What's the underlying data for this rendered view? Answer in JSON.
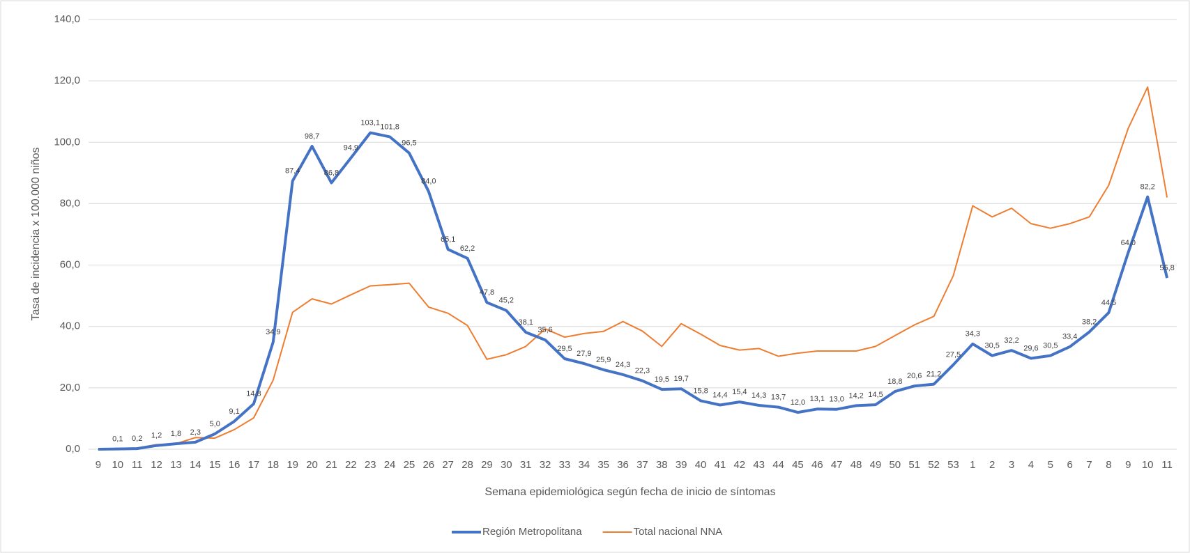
{
  "chart_data": {
    "type": "line",
    "x_label": "Semana epidemiológica según fecha de inicio de síntomas",
    "y_label": "Tasa de incidencia x 100.000 niños",
    "categories": [
      9,
      10,
      11,
      12,
      13,
      14,
      15,
      16,
      17,
      18,
      19,
      20,
      21,
      22,
      23,
      24,
      25,
      26,
      27,
      28,
      29,
      30,
      31,
      32,
      33,
      34,
      35,
      36,
      37,
      38,
      39,
      40,
      41,
      42,
      43,
      44,
      45,
      46,
      47,
      48,
      49,
      50,
      51,
      52,
      53,
      1,
      2,
      3,
      4,
      5,
      6,
      7,
      8,
      9,
      10,
      11
    ],
    "ylim": [
      0,
      140
    ],
    "yticks": [
      {
        "value": 0,
        "label": "0,0"
      },
      {
        "value": 20,
        "label": "20,0"
      },
      {
        "value": 40,
        "label": "40,0"
      },
      {
        "value": 60,
        "label": "60,0"
      },
      {
        "value": 80,
        "label": "80,0"
      },
      {
        "value": 100,
        "label": "100,0"
      },
      {
        "value": 120,
        "label": "120,0"
      },
      {
        "value": 140,
        "label": "140,0"
      }
    ],
    "grid": true,
    "legend": "bottom",
    "series": [
      {
        "name": "Región Metropolitana",
        "color": "#4472c4",
        "width": 4,
        "values": [
          0,
          0.1,
          0.2,
          1.2,
          1.8,
          2.3,
          5.0,
          9.1,
          14.8,
          34.9,
          87.4,
          98.7,
          86.8,
          94.9,
          103.1,
          101.8,
          96.5,
          84.0,
          65.1,
          62.2,
          47.8,
          45.2,
          38.1,
          35.6,
          29.5,
          27.9,
          25.9,
          24.3,
          22.3,
          19.5,
          19.7,
          15.8,
          14.4,
          15.4,
          14.3,
          13.7,
          12.0,
          13.1,
          13.0,
          14.2,
          14.5,
          18.8,
          20.6,
          21.2,
          27.5,
          34.3,
          30.5,
          32.2,
          29.6,
          30.5,
          33.4,
          38.2,
          44.5,
          64.0,
          82.2,
          55.8
        ],
        "value_labels": [
          null,
          "0,1",
          "0,2",
          "1,2",
          "1,8",
          "2,3",
          "5,0",
          "9,1",
          "14,8",
          "34,9",
          "87,4",
          "98,7",
          "86,8",
          "94,9",
          "103,1",
          "101,8",
          "96,5",
          "84,0",
          "65,1",
          "62,2",
          "47,8",
          "45,2",
          "38,1",
          "35,6",
          "29,5",
          "27,9",
          "25,9",
          "24,3",
          "22,3",
          "19,5",
          "19,7",
          "15,8",
          "14,4",
          "15,4",
          "14,3",
          "13,7",
          "12,0",
          "13,1",
          "13,0",
          "14,2",
          "14,5",
          "18,8",
          "20,6",
          "21,2",
          "27,5",
          "34,3",
          "30,5",
          "32,2",
          "29,6",
          "30,5",
          "33,4",
          "38,2",
          "44,5",
          "64,0",
          "82,2",
          "55,8"
        ]
      },
      {
        "name": "Total nacional NNA",
        "color": "#ed7d31",
        "width": 2,
        "values": [
          0,
          0.3,
          0.4,
          1.5,
          1.8,
          3.8,
          3.6,
          6.4,
          10.2,
          22.5,
          44.6,
          49.0,
          47.3,
          50.3,
          53.2,
          53.6,
          54.1,
          46.3,
          44.3,
          40.3,
          29.3,
          30.8,
          33.5,
          39.2,
          36.5,
          37.7,
          38.4,
          41.6,
          38.5,
          33.5,
          40.9,
          37.5,
          33.8,
          32.3,
          32.8,
          30.3,
          31.3,
          32.0,
          32.0,
          32.0,
          33.5,
          37.0,
          40.5,
          43.3,
          56.5,
          79.3,
          75.7,
          78.5,
          73.5,
          72.0,
          73.5,
          75.7,
          86.0,
          104.5,
          118.0,
          82.0
        ]
      }
    ]
  }
}
